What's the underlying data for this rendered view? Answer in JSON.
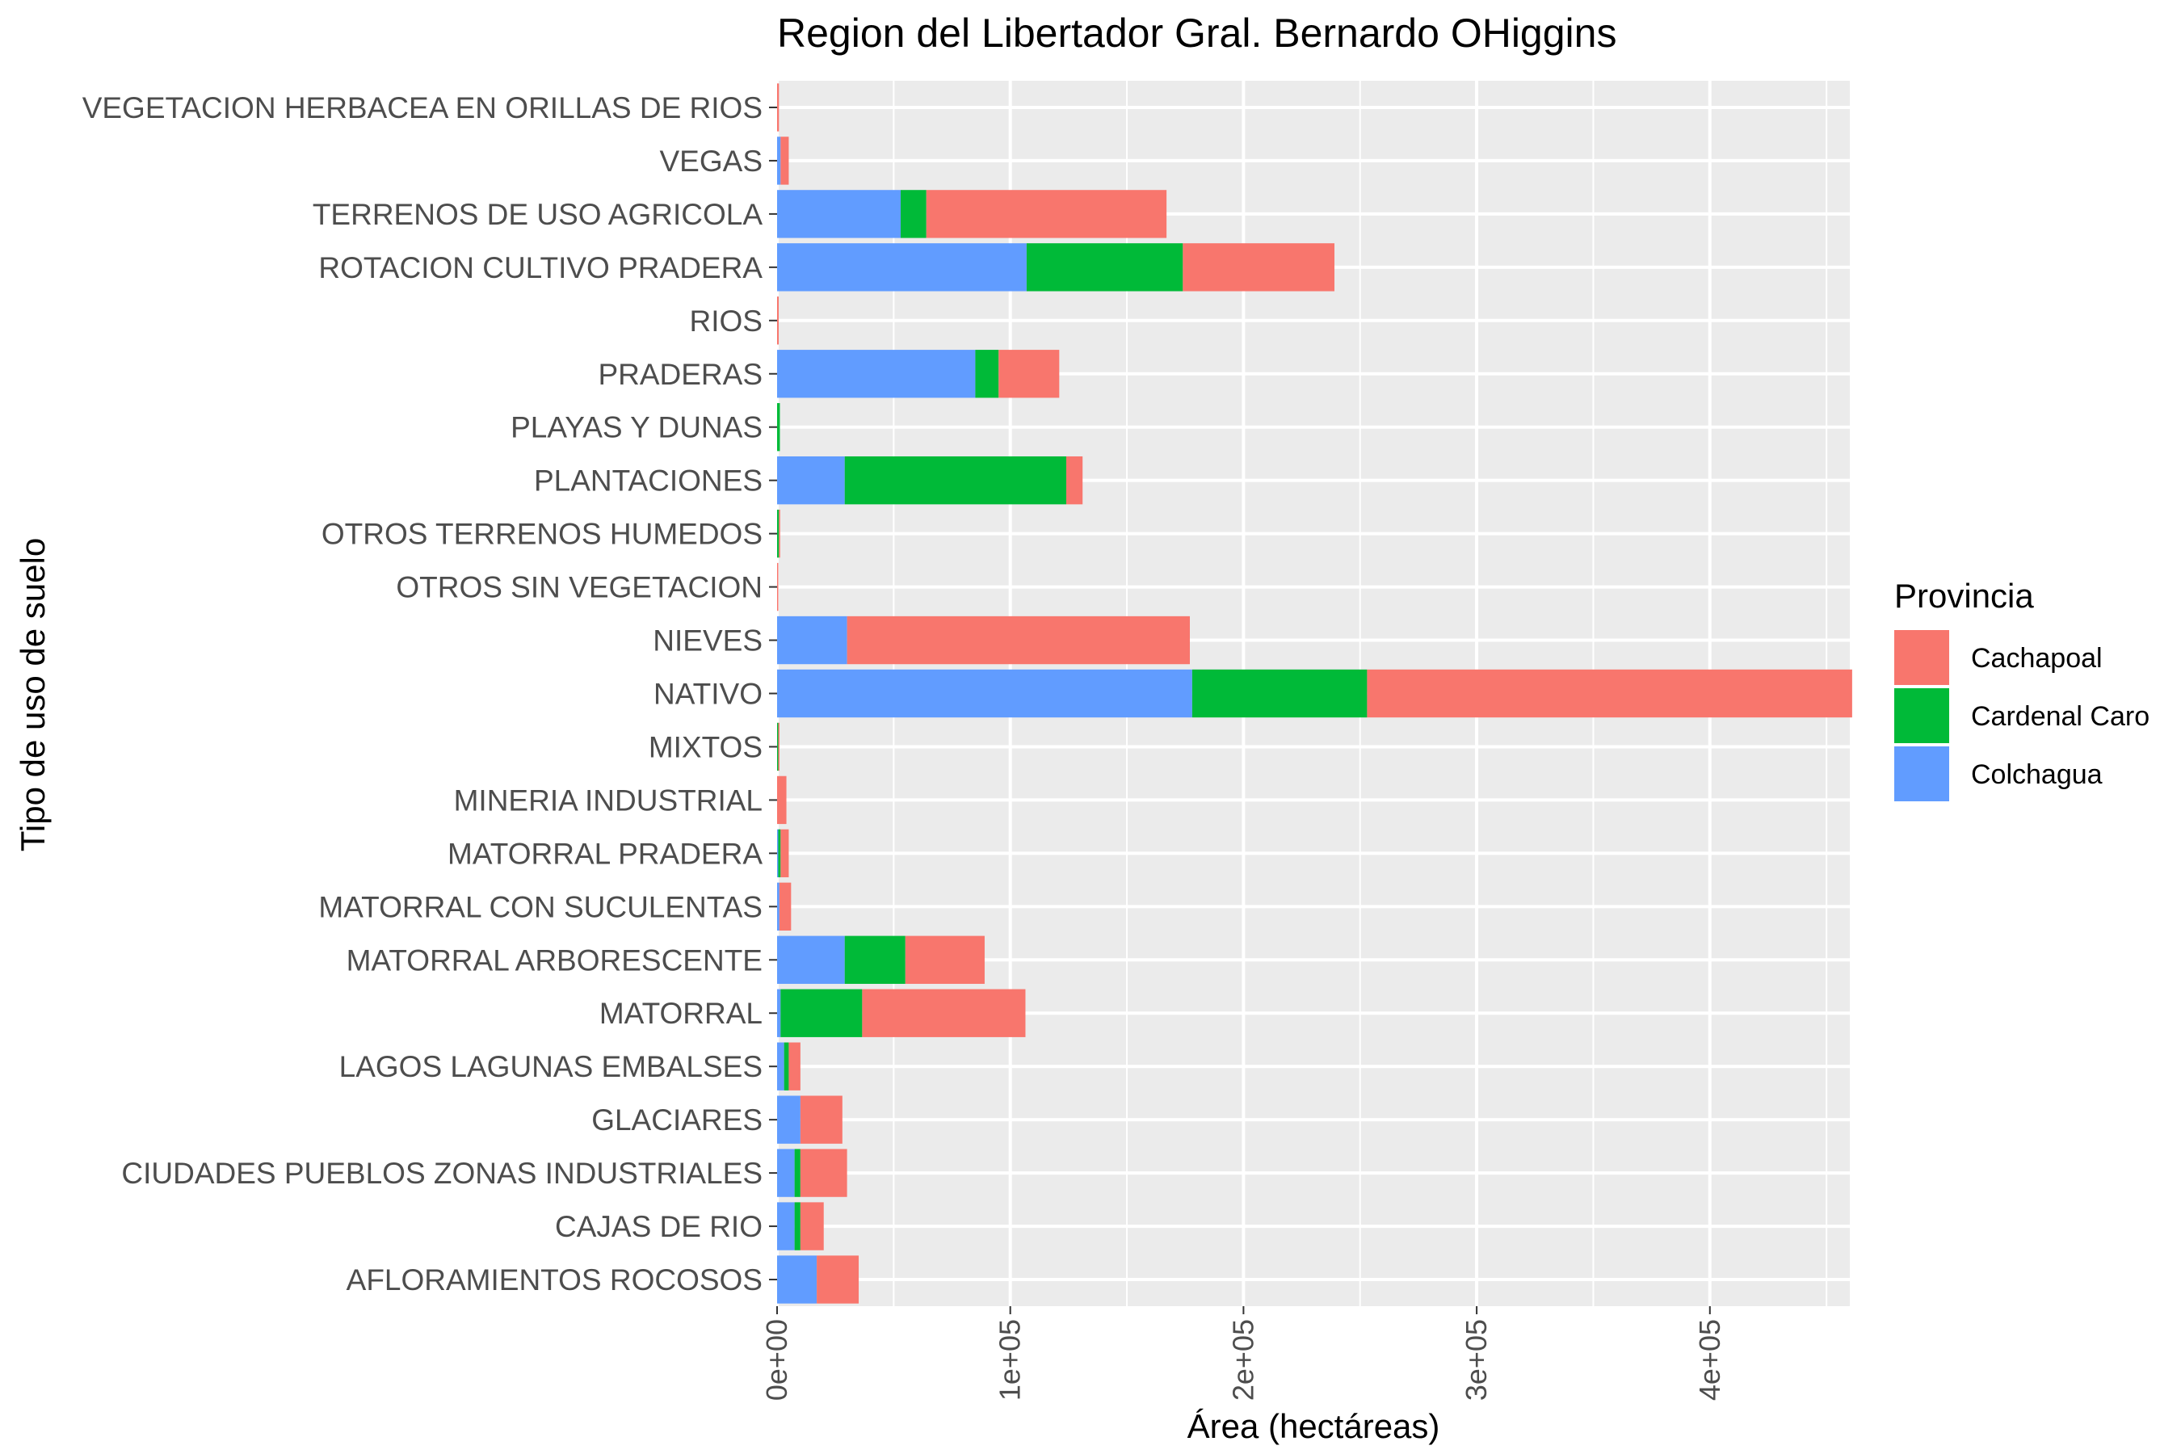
{
  "chart_data": {
    "type": "bar",
    "orientation": "horizontal",
    "stacked": true,
    "title": "Region del Libertador Gral. Bernardo OHiggins",
    "xlabel": "Área (hectáreas)",
    "ylabel": "Tipo de uso de suelo",
    "xlim": [
      0,
      460000
    ],
    "xticks": [
      {
        "value": 0,
        "label": "0e+00"
      },
      {
        "value": 100000,
        "label": "1e+05"
      },
      {
        "value": 200000,
        "label": "2e+05"
      },
      {
        "value": 300000,
        "label": "3e+05"
      },
      {
        "value": 400000,
        "label": "4e+05"
      }
    ],
    "grid": true,
    "legend_position": "right",
    "legend_title": "Provincia",
    "categories": [
      "VEGETACION HERBACEA EN ORILLAS DE RIOS",
      "VEGAS",
      "TERRENOS DE USO AGRICOLA",
      "ROTACION CULTIVO PRADERA",
      "RIOS",
      "PRADERAS",
      "PLAYAS Y DUNAS",
      "PLANTACIONES",
      "OTROS TERRENOS HUMEDOS",
      "OTROS SIN VEGETACION",
      "NIEVES",
      "NATIVO",
      "MIXTOS",
      "MINERIA INDUSTRIAL",
      "MATORRAL PRADERA",
      "MATORRAL CON SUCULENTAS",
      "MATORRAL ARBORESCENTE",
      "MATORRAL",
      "LAGOS LAGUNAS EMBALSES",
      "GLACIARES",
      "CIUDADES PUEBLOS ZONAS INDUSTRIALES",
      "CAJAS DE RIO",
      "AFLORAMIENTOS ROCOSOS"
    ],
    "stack_order": [
      "Colchagua",
      "Cardenal Caro",
      "Cachapoal"
    ],
    "series": [
      {
        "name": "Cachapoal",
        "color": "#F8766D",
        "values": [
          800,
          3500,
          103000,
          65000,
          700,
          26000,
          0,
          7000,
          200,
          500,
          147000,
          208000,
          200,
          4000,
          3500,
          5000,
          34000,
          70000,
          5000,
          18000,
          20000,
          10000,
          18000
        ]
      },
      {
        "name": "Cardenal Caro",
        "color": "#00BA38",
        "values": [
          0,
          0,
          11000,
          67000,
          0,
          10000,
          1200,
          95000,
          800,
          0,
          0,
          75000,
          500,
          0,
          1000,
          0,
          26000,
          35000,
          2000,
          0,
          2500,
          2500,
          0
        ]
      },
      {
        "name": "Colchagua",
        "color": "#619CFF",
        "values": [
          0,
          1500,
          53000,
          107000,
          0,
          85000,
          0,
          29000,
          0,
          0,
          30000,
          178000,
          0,
          0,
          500,
          1000,
          29000,
          1500,
          3000,
          10000,
          7500,
          7500,
          17000
        ]
      }
    ]
  }
}
